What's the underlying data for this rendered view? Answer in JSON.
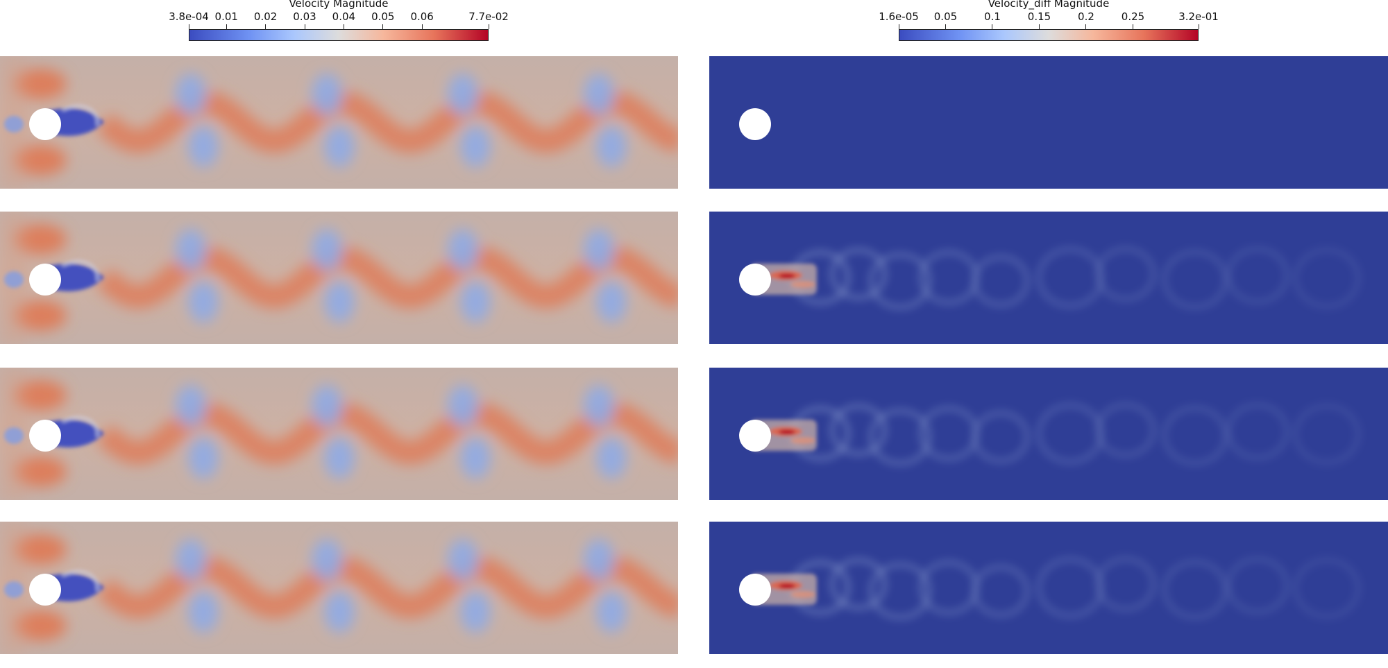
{
  "colorbars": {
    "left": {
      "title": "Velocity Magnitude",
      "ticks": [
        "3.8e-04",
        "0.01",
        "0.02",
        "0.03",
        "0.04",
        "0.05",
        "0.06",
        "7.7e-02"
      ],
      "tick_values": [
        0.00038,
        0.01,
        0.02,
        0.03,
        0.04,
        0.05,
        0.06,
        0.077
      ],
      "range": [
        0.00038,
        0.077
      ]
    },
    "right": {
      "title": "Velocity_diff Magnitude",
      "ticks": [
        "1.6e-05",
        "0.05",
        "0.1",
        "0.15",
        "0.2",
        "0.25",
        "3.2e-01"
      ],
      "tick_values": [
        1.6e-05,
        0.05,
        0.1,
        0.15,
        0.2,
        0.25,
        0.32
      ],
      "range": [
        1.6e-05,
        0.32
      ]
    }
  },
  "colors": {
    "velocity_background": "#c9b0a6",
    "velocity_high": "#e0764f",
    "velocity_low": "#8fabe6",
    "velocity_wake": "#3b4cc0",
    "diff_background": "#2f3e96",
    "diff_mid": "#8d9fd0",
    "diff_high": "#b40426",
    "cylinder": "#ffffff"
  }
}
